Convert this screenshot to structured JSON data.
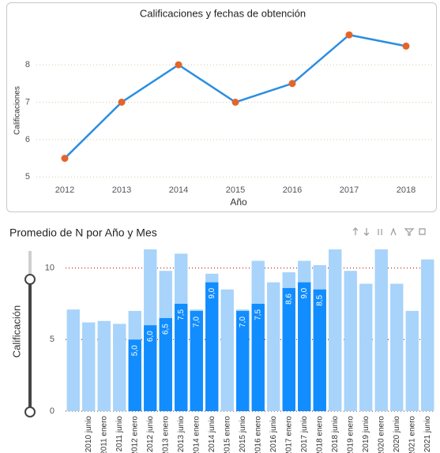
{
  "chart_data": [
    {
      "type": "line",
      "title": "Calificaciones y fechas de obtención",
      "x_label": "Año",
      "y_label": "Calificaciones",
      "categories": [
        "2012",
        "2013",
        "2014",
        "2015",
        "2016",
        "2017",
        "2018"
      ],
      "series": [
        {
          "color": "#2b8ee0",
          "marker_color": "#e4652a",
          "values": [
            5.5,
            7,
            8,
            7,
            7.5,
            8.8,
            8.5
          ]
        }
      ],
      "ylim": [
        4.9,
        9.1
      ],
      "yticks": [
        5,
        6,
        7,
        8
      ],
      "grid": true,
      "grid_color": "#d9c9a3"
    },
    {
      "type": "bar",
      "title": "Promedio de N por Año y Mes",
      "y_label": "Calificación",
      "categories": [
        null,
        "2010 junio",
        "2011 enero",
        "2011 junio",
        "2012 enero",
        "2012 junio",
        "2013 enero",
        "2013 junio",
        "2014 enero",
        "2014 junio",
        "2015 enero",
        "2015 junio",
        "2016 enero",
        "2016 junio",
        "2017 enero",
        "2017 junio",
        "2018 enero",
        "2018 junio",
        "2019 enero",
        "2019 junio",
        "2020 enero",
        "2020 junio",
        "2021 enero",
        "2021 junio"
      ],
      "series": [
        {
          "color": "#a8d3fa",
          "values": [
            7.1,
            6.2,
            6.3,
            6.1,
            7.0,
            11.3,
            9.8,
            11.0,
            7.1,
            9.6,
            8.5,
            7.1,
            10.5,
            9.0,
            9.7,
            10.5,
            10.2,
            11.3,
            9.8,
            8.9,
            11.3,
            8.9,
            7.0,
            10.6
          ]
        },
        {
          "color": "#118dff",
          "values": [
            null,
            null,
            null,
            null,
            5.0,
            6.0,
            6.5,
            7.5,
            7.0,
            9.0,
            null,
            7.0,
            7.5,
            null,
            8.6,
            9.0,
            8.5,
            null,
            null,
            null,
            null,
            null,
            null,
            null
          ],
          "value_labels": [
            null,
            null,
            null,
            null,
            "5,0",
            "6,0",
            "6,5",
            "7,5",
            "7,0",
            "9,0",
            null,
            "7,0",
            "7,5",
            null,
            "8,6",
            "9,0",
            "8,5",
            null,
            null,
            null,
            null,
            null,
            null,
            null
          ]
        }
      ],
      "ylim": [
        0,
        11.3
      ],
      "yticks": [
        0,
        5,
        10
      ],
      "grid": true,
      "grid_color": "#c0392b"
    }
  ]
}
